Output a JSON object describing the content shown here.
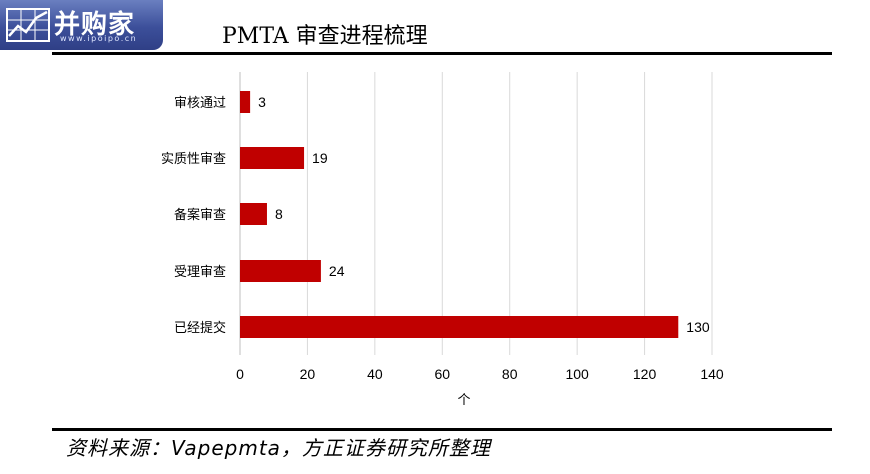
{
  "logo": {
    "text": "并购家",
    "subtext": "www.ipoipo.cn"
  },
  "title": "PMTA 审查进程梳理",
  "source": "资料来源：Vapepmta，方正证券研究所整理",
  "colors": {
    "bar": "#c00000",
    "grid": "#d9d9d9",
    "rule": "#000000",
    "logo_bg": "#3c4f9a"
  },
  "chart_data": {
    "type": "bar",
    "orientation": "horizontal",
    "title": "PMTA 审查进程梳理",
    "categories": [
      "审核通过",
      "实质性审查",
      "备案审查",
      "受理审查",
      "已经提交"
    ],
    "values": [
      3,
      19,
      8,
      24,
      130
    ],
    "xlabel": "个",
    "ylabel": "",
    "xlim": [
      0,
      140
    ],
    "xticks": [
      0,
      20,
      40,
      60,
      80,
      100,
      120,
      140
    ],
    "grid": true,
    "legend": "none"
  }
}
